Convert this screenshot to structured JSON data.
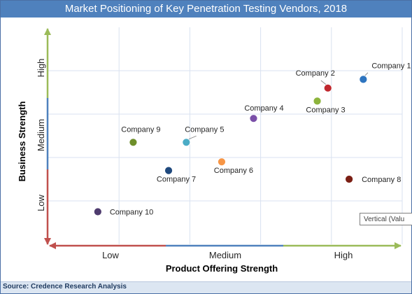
{
  "title": "Market Positioning of Key Penetration Testing Vendors, 2018",
  "source": "Source: Credence Research Analysis",
  "tooltip_text": "Vertical (Valu",
  "chart_data": {
    "type": "scatter",
    "title": "Market Positioning of Key Penetration Testing Vendors, 2018",
    "xlabel": "Product Offering Strength",
    "ylabel": "Business Strength",
    "x_tick_labels": [
      "Low",
      "Medium",
      "High"
    ],
    "y_tick_labels": [
      "Low",
      "Medium",
      "High"
    ],
    "xlim": [
      0,
      10
    ],
    "ylim": [
      0,
      10
    ],
    "grid": true,
    "points": [
      {
        "label": "Company 1",
        "x": 8.9,
        "y": 7.6,
        "color": "#2e75c0"
      },
      {
        "label": "Company 2",
        "x": 7.9,
        "y": 7.2,
        "color": "#c0282e"
      },
      {
        "label": "Company 3",
        "x": 7.6,
        "y": 6.6,
        "color": "#8db43c"
      },
      {
        "label": "Company 4",
        "x": 5.8,
        "y": 5.8,
        "color": "#7a4fa8"
      },
      {
        "label": "Company 5",
        "x": 3.9,
        "y": 4.7,
        "color": "#4bacc6"
      },
      {
        "label": "Company 6",
        "x": 4.9,
        "y": 3.8,
        "color": "#f79646"
      },
      {
        "label": "Company 7",
        "x": 3.4,
        "y": 3.4,
        "color": "#1f497d"
      },
      {
        "label": "Company 8",
        "x": 8.5,
        "y": 3.0,
        "color": "#7b1f14"
      },
      {
        "label": "Company 9",
        "x": 2.4,
        "y": 4.7,
        "color": "#6e8f2a"
      },
      {
        "label": "Company 10",
        "x": 1.4,
        "y": 1.5,
        "color": "#4e3b6e"
      }
    ]
  }
}
